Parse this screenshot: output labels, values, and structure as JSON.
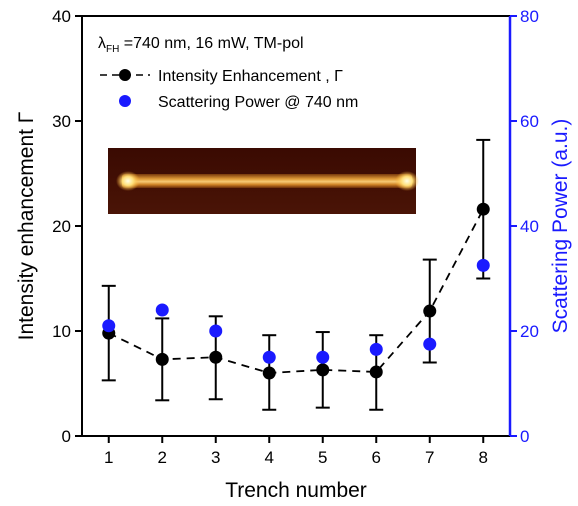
{
  "chart_data": {
    "type": "line",
    "x": [
      1,
      2,
      3,
      4,
      5,
      6,
      7,
      8
    ],
    "xlabel": "Trench number",
    "xlim": [
      0.5,
      8.5
    ],
    "xticks": [
      1,
      2,
      3,
      4,
      5,
      6,
      7,
      8
    ],
    "ylabel": "Intensity enhancement  Γ",
    "ylim": [
      0,
      40
    ],
    "yticks": [
      0,
      10,
      20,
      30,
      40
    ],
    "y2label": "Scattering Power (a.u.)",
    "y2lim": [
      0,
      80
    ],
    "y2ticks": [
      0,
      20,
      40,
      60,
      80
    ],
    "annotation": {
      "symbol": "λ",
      "subscript": "FH",
      "text": " =740 nm, 16 mW, TM-pol"
    },
    "legend_position": "top-left",
    "inset": "camera image of a bright horizontal bar with bright spots at both ends",
    "series": [
      {
        "name": "Intensity Enhancement , Γ",
        "axis": "left",
        "style": "dashed line with black filled circles and error bars",
        "color": "#000000",
        "values": [
          9.8,
          7.3,
          7.5,
          6.0,
          6.3,
          6.1,
          11.9,
          21.6
        ],
        "error_low": [
          5.3,
          3.4,
          3.5,
          2.5,
          2.7,
          2.5,
          7.0,
          15.0
        ],
        "error_high": [
          14.3,
          11.2,
          11.4,
          9.6,
          9.9,
          9.6,
          16.8,
          28.2
        ]
      },
      {
        "name": "Scattering Power  @ 740 nm",
        "axis": "right",
        "style": "blue filled circles",
        "color": "#1a1aff",
        "values": [
          21,
          24,
          20,
          15,
          15,
          16.5,
          17.5,
          32.5
        ]
      }
    ]
  }
}
